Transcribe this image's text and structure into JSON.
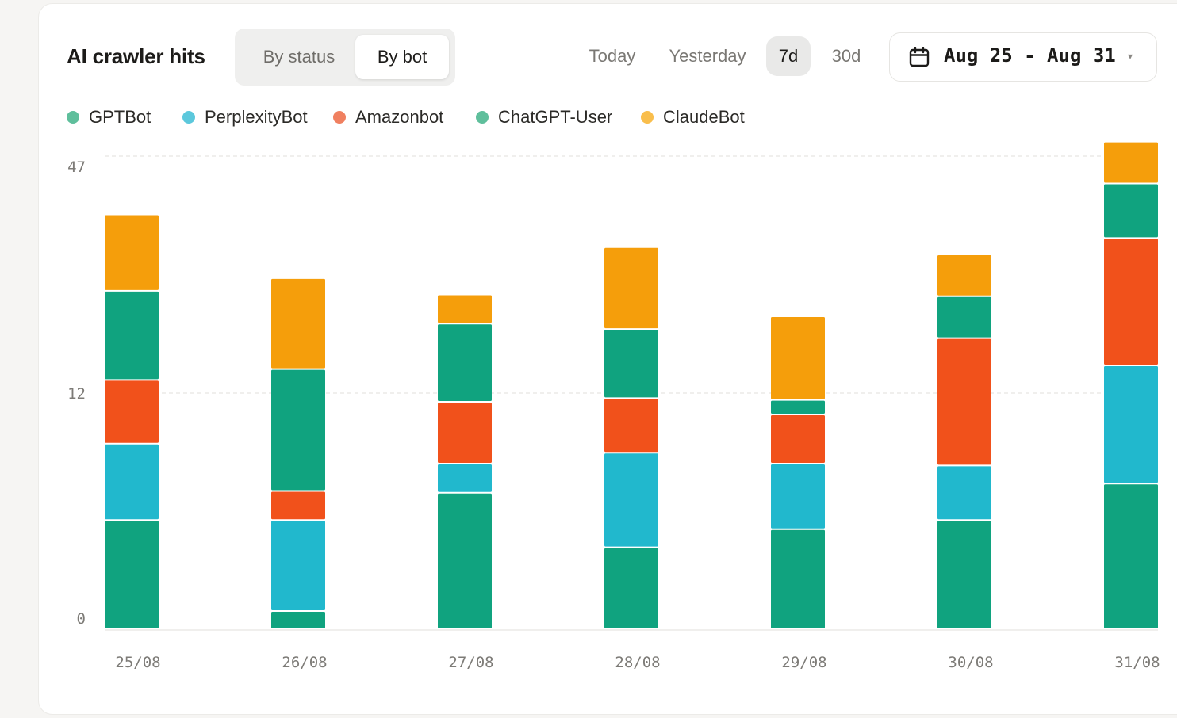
{
  "header": {
    "title": "AI crawler hits",
    "segmented": [
      {
        "label": "By status",
        "active": false
      },
      {
        "label": "By bot",
        "active": true
      }
    ],
    "ranges": [
      {
        "label": "Today",
        "active": false
      },
      {
        "label": "Yesterday",
        "active": false
      },
      {
        "label": "7d",
        "active": true
      },
      {
        "label": "30d",
        "active": false
      }
    ],
    "date_range": "Aug 25 - Aug 31",
    "calendar_icon": "calendar-icon",
    "caret": "▾"
  },
  "chart_data": {
    "type": "bar",
    "stacked": true,
    "categories": [
      "25/08",
      "26/08",
      "27/08",
      "28/08",
      "29/08",
      "30/08",
      "31/08"
    ],
    "y_ticks": [
      "47",
      "12",
      "0"
    ],
    "grid": true,
    "legend_position": "top-left",
    "series": [
      {
        "name": "GPTBot",
        "legend_color": "#5fbf9c",
        "color": "#10a37f",
        "values": [
          6,
          1,
          7.5,
          4.5,
          5.5,
          6,
          8
        ]
      },
      {
        "name": "PerplexityBot",
        "legend_color": "#5cc8dc",
        "color": "#21b8cd",
        "values": [
          4.2,
          5,
          1.6,
          5.2,
          3.6,
          3,
          6.5
        ]
      },
      {
        "name": "Amazonbot",
        "legend_color": "#f08060",
        "color": "#f1511b",
        "values": [
          3.5,
          1.6,
          3.4,
          3,
          2.7,
          7,
          7
        ]
      },
      {
        "name": "ChatGPT-User",
        "legend_color": "#5fbf9c",
        "color": "#10a37f",
        "values": [
          4.9,
          6.7,
          4.3,
          3.8,
          0.8,
          2.3,
          3
        ]
      },
      {
        "name": "ClaudeBot",
        "legend_color": "#f9be4c",
        "color": "#f59e0b",
        "values": [
          4.2,
          5,
          1.6,
          4.5,
          4.6,
          2.3,
          2.3
        ]
      }
    ]
  }
}
